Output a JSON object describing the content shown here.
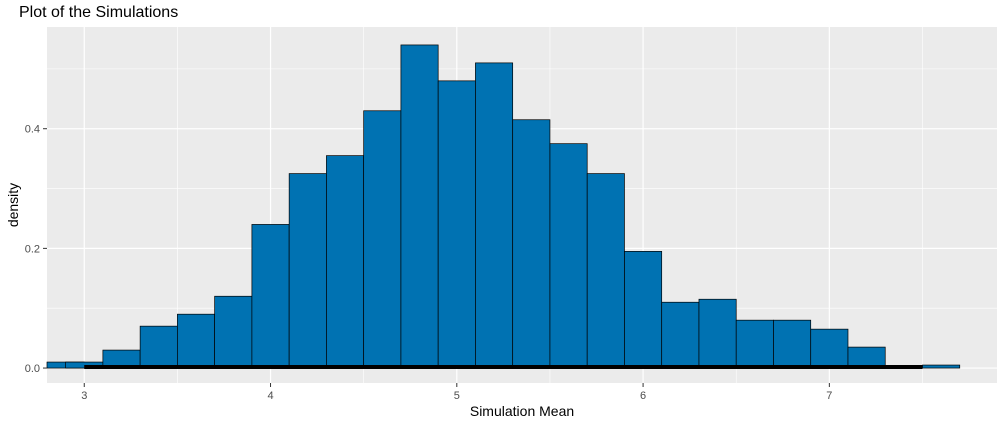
{
  "chart_data": {
    "type": "bar",
    "title": "Plot of the Simulations",
    "xlabel": "Simulation Mean",
    "ylabel": "density",
    "xlim": [
      2.8,
      7.9
    ],
    "ylim": [
      -0.025,
      0.57
    ],
    "x_ticks": [
      3,
      4,
      5,
      6,
      7
    ],
    "y_ticks": [
      0.0,
      0.2,
      0.4
    ],
    "x_tick_labels": [
      "3",
      "4",
      "5",
      "6",
      "7"
    ],
    "y_tick_labels": [
      "0.0",
      "0.2",
      "0.4"
    ],
    "grid": true,
    "bin_width": 0.2,
    "bins": [
      {
        "x": 3.0,
        "density": 0.01
      },
      {
        "x": 3.2,
        "density": 0.03
      },
      {
        "x": 3.4,
        "density": 0.07
      },
      {
        "x": 3.6,
        "density": 0.09
      },
      {
        "x": 3.8,
        "density": 0.12
      },
      {
        "x": 4.0,
        "density": 0.24
      },
      {
        "x": 4.2,
        "density": 0.325
      },
      {
        "x": 4.4,
        "density": 0.355
      },
      {
        "x": 4.6,
        "density": 0.43
      },
      {
        "x": 4.8,
        "density": 0.54
      },
      {
        "x": 5.0,
        "density": 0.48
      },
      {
        "x": 5.2,
        "density": 0.51
      },
      {
        "x": 5.4,
        "density": 0.415
      },
      {
        "x": 5.6,
        "density": 0.375
      },
      {
        "x": 5.8,
        "density": 0.325
      },
      {
        "x": 6.0,
        "density": 0.195
      },
      {
        "x": 6.2,
        "density": 0.11
      },
      {
        "x": 6.4,
        "density": 0.115
      },
      {
        "x": 6.6,
        "density": 0.08
      },
      {
        "x": 6.8,
        "density": 0.08
      },
      {
        "x": 7.0,
        "density": 0.065
      },
      {
        "x": 7.2,
        "density": 0.035
      },
      {
        "x": 7.4,
        "density": 0.0
      },
      {
        "x": 7.6,
        "density": 0.005
      }
    ],
    "first_bin_x": 2.9,
    "first_bin_density": 0.01,
    "baseline_segment_x": [
      3.0,
      7.5
    ],
    "colors": {
      "fill": "#0072B2",
      "outline": "#000000",
      "panel": "#EBEBEB",
      "grid": "#FFFFFF"
    }
  }
}
